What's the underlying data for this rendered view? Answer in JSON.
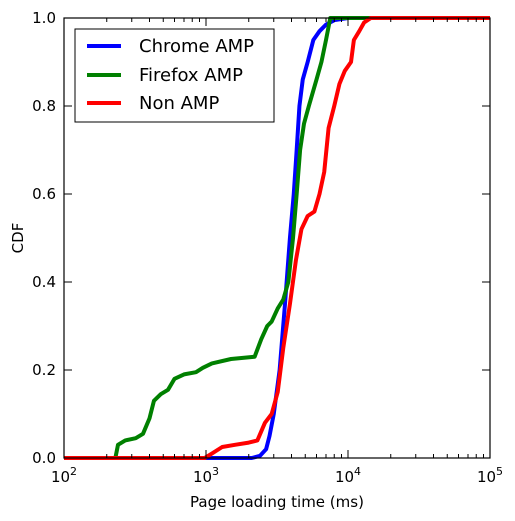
{
  "chart_data": {
    "type": "line",
    "title": "",
    "xlabel": "Page loading time (ms)",
    "ylabel": "CDF",
    "xscale": "log",
    "xlim": [
      100,
      100000
    ],
    "ylim": [
      0.0,
      1.0
    ],
    "x_ticks": [
      {
        "value": 100,
        "base": "10",
        "exp": "2"
      },
      {
        "value": 1000,
        "base": "10",
        "exp": "3"
      },
      {
        "value": 10000,
        "base": "10",
        "exp": "4"
      },
      {
        "value": 100000,
        "base": "10",
        "exp": "5"
      }
    ],
    "y_ticks": [
      "0.0",
      "0.2",
      "0.4",
      "0.6",
      "0.8",
      "1.0"
    ],
    "grid": false,
    "legend_position": "top-left",
    "series": [
      {
        "name": "Chrome AMP",
        "color": "#0000ff",
        "points": [
          [
            100,
            0.0
          ],
          [
            2100,
            0.0
          ],
          [
            2400,
            0.005
          ],
          [
            2650,
            0.02
          ],
          [
            2800,
            0.05
          ],
          [
            3000,
            0.1
          ],
          [
            3300,
            0.2
          ],
          [
            3600,
            0.35
          ],
          [
            3900,
            0.5
          ],
          [
            4150,
            0.6
          ],
          [
            4350,
            0.7
          ],
          [
            4550,
            0.8
          ],
          [
            4800,
            0.86
          ],
          [
            5200,
            0.9
          ],
          [
            5700,
            0.95
          ],
          [
            6300,
            0.97
          ],
          [
            7000,
            0.985
          ],
          [
            8000,
            0.995
          ],
          [
            10000,
            1.0
          ],
          [
            100000,
            1.0
          ]
        ]
      },
      {
        "name": "Firefox AMP",
        "color": "#008000",
        "points": [
          [
            100,
            0.0
          ],
          [
            230,
            0.0
          ],
          [
            240,
            0.03
          ],
          [
            270,
            0.04
          ],
          [
            320,
            0.045
          ],
          [
            360,
            0.055
          ],
          [
            400,
            0.09
          ],
          [
            430,
            0.13
          ],
          [
            480,
            0.145
          ],
          [
            540,
            0.155
          ],
          [
            600,
            0.18
          ],
          [
            700,
            0.19
          ],
          [
            850,
            0.195
          ],
          [
            950,
            0.205
          ],
          [
            1100,
            0.215
          ],
          [
            1500,
            0.225
          ],
          [
            2200,
            0.23
          ],
          [
            2450,
            0.27
          ],
          [
            2700,
            0.3
          ],
          [
            2900,
            0.31
          ],
          [
            3200,
            0.34
          ],
          [
            3500,
            0.36
          ],
          [
            3800,
            0.4
          ],
          [
            4100,
            0.5
          ],
          [
            4350,
            0.6
          ],
          [
            4600,
            0.7
          ],
          [
            4900,
            0.76
          ],
          [
            5300,
            0.8
          ],
          [
            6000,
            0.86
          ],
          [
            6500,
            0.9
          ],
          [
            7000,
            0.95
          ],
          [
            7500,
            1.0
          ],
          [
            100000,
            1.0
          ]
        ]
      },
      {
        "name": "Non AMP",
        "color": "#ff0000",
        "points": [
          [
            100,
            0.0
          ],
          [
            980,
            0.0
          ],
          [
            1100,
            0.01
          ],
          [
            1300,
            0.025
          ],
          [
            1600,
            0.03
          ],
          [
            2000,
            0.035
          ],
          [
            2300,
            0.04
          ],
          [
            2600,
            0.08
          ],
          [
            2900,
            0.1
          ],
          [
            3200,
            0.15
          ],
          [
            3500,
            0.25
          ],
          [
            3900,
            0.35
          ],
          [
            4300,
            0.45
          ],
          [
            4700,
            0.52
          ],
          [
            5200,
            0.55
          ],
          [
            5800,
            0.56
          ],
          [
            6300,
            0.6
          ],
          [
            6800,
            0.65
          ],
          [
            7300,
            0.75
          ],
          [
            8000,
            0.8
          ],
          [
            8700,
            0.85
          ],
          [
            9500,
            0.88
          ],
          [
            10500,
            0.9
          ],
          [
            11000,
            0.95
          ],
          [
            12000,
            0.97
          ],
          [
            13000,
            0.99
          ],
          [
            14500,
            1.0
          ],
          [
            100000,
            1.0
          ]
        ]
      }
    ]
  }
}
